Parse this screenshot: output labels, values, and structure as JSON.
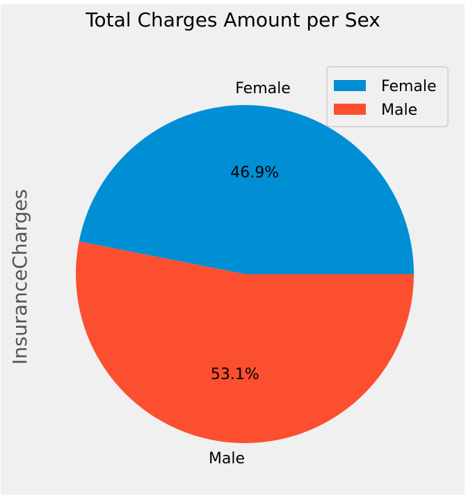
{
  "chart_data": {
    "type": "pie",
    "title": "Total Charges Amount per Sex",
    "ylabel": "InsuranceCharges",
    "categories": [
      "Female",
      "Male"
    ],
    "values": [
      46.9,
      53.1
    ],
    "value_labels": [
      "46.9%",
      "53.1%"
    ],
    "colors": [
      "#008fd5",
      "#fc4f30"
    ],
    "legend": {
      "placement": "top-right",
      "entries": [
        "Female",
        "Male"
      ]
    }
  },
  "style": {
    "figure_background": "#f0f0f0",
    "text_color": "#000000",
    "axis_label_color": "#555555",
    "legend_background": "#f0f0f0",
    "legend_border": "#cccccc"
  }
}
